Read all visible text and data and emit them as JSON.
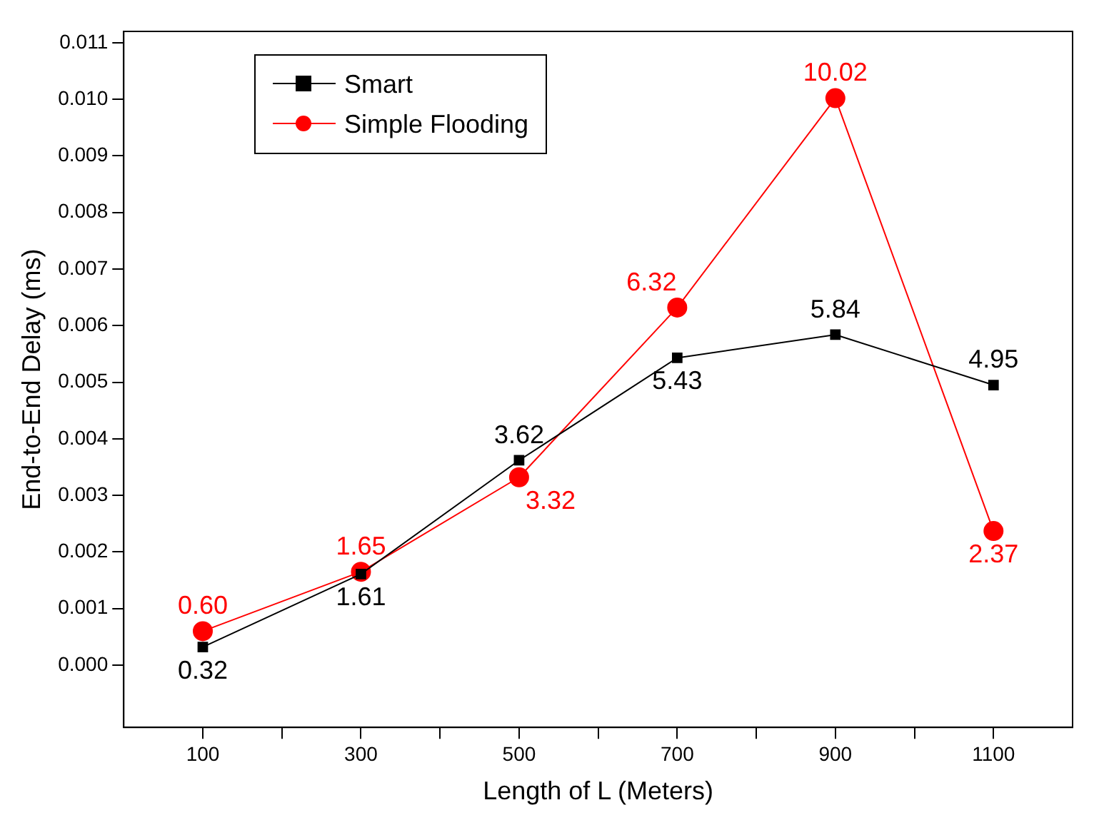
{
  "chart_data": {
    "type": "line",
    "xlabel": "Length of L (Meters)",
    "ylabel": "End-to-End Delay (ms)",
    "x": [
      100,
      300,
      500,
      700,
      900,
      1100
    ],
    "series": [
      {
        "name": "Smart",
        "color": "#000000",
        "marker": "square",
        "values": [
          0.00032,
          0.00161,
          0.00362,
          0.00543,
          0.00584,
          0.00495
        ]
      },
      {
        "name": "Simple Flooding",
        "color": "#ff0000",
        "marker": "circle",
        "values": [
          0.0006,
          0.00165,
          0.00332,
          0.00632,
          0.01002,
          0.00237
        ]
      }
    ],
    "annotations": [
      {
        "text": "0.32",
        "x": 100,
        "y": 0.00032
      },
      {
        "text": "1.61",
        "x": 300,
        "y": 0.00161
      },
      {
        "text": "3.62",
        "x": 500,
        "y": 0.00362
      },
      {
        "text": "5.43",
        "x": 700,
        "y": 0.00543
      },
      {
        "text": "5.84",
        "x": 900,
        "y": 0.00584
      },
      {
        "text": "4.95",
        "x": 1100,
        "y": 0.00495
      },
      {
        "text": "0.60",
        "x": 100,
        "y": 0.0006
      },
      {
        "text": "1.65",
        "x": 300,
        "y": 0.00165
      },
      {
        "text": "3.32",
        "x": 500,
        "y": 0.00332
      },
      {
        "text": "6.32",
        "x": 700,
        "y": 0.00632
      },
      {
        "text": "10.02",
        "x": 900,
        "y": 0.01002
      },
      {
        "text": "2.37",
        "x": 1100,
        "y": 0.00237
      }
    ],
    "xlim": [
      0,
      1200
    ],
    "xticks": [
      100,
      {
        "value": 200,
        "label": null
      },
      300,
      {
        "value": 400,
        "label": null
      },
      500,
      {
        "value": 600,
        "label": null
      },
      700,
      {
        "value": 800,
        "label": null
      },
      900,
      {
        "value": 1000,
        "label": null
      },
      1100
    ],
    "ylim": [
      -0.0011,
      0.0112
    ],
    "yticks": [
      {
        "value": 0,
        "label": "0.000"
      },
      {
        "value": 0.001,
        "label": "0.001"
      },
      {
        "value": 0.002,
        "label": "0.002"
      },
      {
        "value": 0.003,
        "label": "0.003"
      },
      {
        "value": 0.004,
        "label": "0.004"
      },
      {
        "value": 0.005,
        "label": "0.005"
      },
      {
        "value": 0.006,
        "label": "0.006"
      },
      {
        "value": 0.007,
        "label": "0.007"
      },
      {
        "value": 0.008,
        "label": "0.008"
      },
      {
        "value": 0.009,
        "label": "0.009"
      },
      {
        "value": 0.01,
        "label": "0.010"
      },
      {
        "value": 0.011,
        "label": "0.011"
      }
    ],
    "grid": false,
    "legend": "top left",
    "line_style": "solid"
  }
}
